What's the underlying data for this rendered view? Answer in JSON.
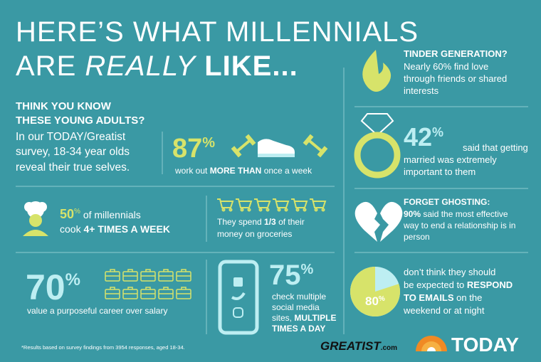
{
  "title": {
    "line1": "HERE’S WHAT MILLENNIALS",
    "line2a": "ARE ",
    "line2b": "REALLY",
    "line2c": " LIKE..."
  },
  "intro": {
    "heading": [
      "THINK YOU KNOW",
      "THESE YOUNG ADULTS?"
    ],
    "body": [
      "In our TODAY/Greatist",
      "survey, 18-34 year olds",
      "reveal their true selves."
    ]
  },
  "workout": {
    "value": 87,
    "unit": "%",
    "pre": "work out ",
    "bold": "MORE THAN",
    "post": " once a week"
  },
  "cook": {
    "value": 50,
    "unit": "%",
    "line1": " of millennials",
    "pre": "cook ",
    "bold": "4+ TIMES A WEEK"
  },
  "groceries": {
    "pre": "They spend ",
    "bold": "1/3",
    "post": " of their",
    "line2": "money on groceries"
  },
  "career": {
    "value": 70,
    "unit": "%",
    "text": "value a purposeful career over salary"
  },
  "social": {
    "value": 75,
    "unit": "%",
    "lines": [
      "check multiple",
      "social media"
    ],
    "pre": "sites, ",
    "bold": "MULTIPLE",
    "line4": "TIMES A DAY"
  },
  "tinder": {
    "heading": "TINDER GENERATION?",
    "lines": [
      "Nearly 60% find love",
      "through friends or shared",
      "interests"
    ]
  },
  "married": {
    "value": 42,
    "unit": "%",
    "lines": [
      "said that getting",
      "married was extremely",
      "important to them"
    ]
  },
  "ghosting": {
    "heading": "FORGET GHOSTING:",
    "bold": "90%",
    "post": " said the most effective",
    "lines": [
      "way to end a relationship is in",
      "person"
    ]
  },
  "emails": {
    "value": 80,
    "unit": "%",
    "line1": "don’t think they should",
    "pre": "be expected to ",
    "bold1": "RESPOND",
    "bold2": "TO EMAILS",
    "post": " on the",
    "line4": "weekend or at night"
  },
  "footnote": "*Results based on survey findings from 3954 responses, aged 18-34.",
  "logos": {
    "greatist": "GREATIST",
    "greatist_suffix": ".com",
    "today": "TODAY"
  }
}
